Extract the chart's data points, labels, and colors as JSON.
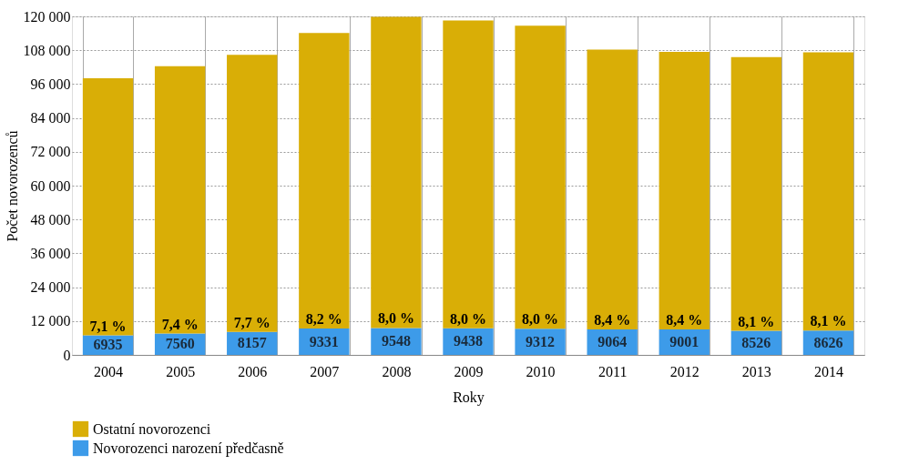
{
  "chart_data": {
    "type": "bar",
    "stacked": true,
    "xlabel": "Roky",
    "ylabel": "Počet novorozenců",
    "categories": [
      "2004",
      "2005",
      "2006",
      "2007",
      "2008",
      "2009",
      "2010",
      "2011",
      "2012",
      "2013",
      "2014"
    ],
    "series": [
      {
        "name": "Novorozenci narození předčasně",
        "color": "#3d9be9",
        "values": [
          6935,
          7560,
          8157,
          9331,
          9548,
          9438,
          9312,
          9064,
          9001,
          8526,
          8626
        ],
        "value_labels": [
          "6935",
          "7560",
          "8157",
          "9331",
          "9548",
          "9438",
          "9312",
          "9064",
          "9001",
          "8526",
          "8626"
        ]
      },
      {
        "name": "Ostatní novorozenci",
        "color": "#d9ae06",
        "values": [
          91100,
          94800,
          98200,
          104800,
          110300,
          109100,
          107400,
          99200,
          98400,
          97000,
          98600
        ]
      }
    ],
    "annotations": [
      {
        "text": "7,1 %",
        "x": "2004",
        "y": 6935
      },
      {
        "text": "7,4 %",
        "x": "2005",
        "y": 7560
      },
      {
        "text": "7,7 %",
        "x": "2006",
        "y": 8157
      },
      {
        "text": "8,2 %",
        "x": "2007",
        "y": 9331
      },
      {
        "text": "8,0 %",
        "x": "2008",
        "y": 9548
      },
      {
        "text": "8,0 %",
        "x": "2009",
        "y": 9438
      },
      {
        "text": "8,0 %",
        "x": "2010",
        "y": 9312
      },
      {
        "text": "8,4 %",
        "x": "2011",
        "y": 9064
      },
      {
        "text": "8,4 %",
        "x": "2012",
        "y": 9001
      },
      {
        "text": "8,1 %",
        "x": "2013",
        "y": 8526
      },
      {
        "text": "8,1 %",
        "x": "2014",
        "y": 8626
      }
    ],
    "ylim": [
      0,
      120000
    ],
    "yticks": [
      0,
      {
        "value": 12000,
        "label": "12 000"
      },
      {
        "value": 24000,
        "label": "24 000"
      },
      {
        "value": 36000,
        "label": "36 000"
      },
      {
        "value": 48000,
        "label": "48 000"
      },
      {
        "value": 60000,
        "label": "60 000"
      },
      {
        "value": 72000,
        "label": "72 000"
      },
      {
        "value": 84000,
        "label": "84 000"
      },
      {
        "value": 96000,
        "label": "96 000"
      },
      {
        "value": 108000,
        "label": "108 000"
      },
      {
        "value": 120000,
        "label": "120 000"
      }
    ],
    "grid": true,
    "legend": "bottom"
  }
}
